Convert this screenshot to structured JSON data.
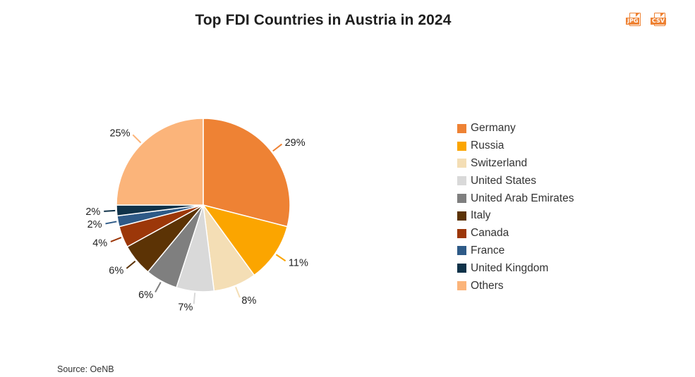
{
  "chart_data": {
    "type": "pie",
    "title": "Top FDI Countries in Austria in 2024",
    "slices": [
      {
        "label": "Germany",
        "value": 29,
        "color": "#ee8234"
      },
      {
        "label": "Russia",
        "value": 11,
        "color": "#fba500"
      },
      {
        "label": "Switzerland",
        "value": 8,
        "color": "#f4deb5"
      },
      {
        "label": "United States",
        "value": 7,
        "color": "#d9d9d9"
      },
      {
        "label": "United Arab Emirates",
        "value": 6,
        "color": "#7f7f7f"
      },
      {
        "label": "Italy",
        "value": 6,
        "color": "#5c3305"
      },
      {
        "label": "Canada",
        "value": 4,
        "color": "#9c3709"
      },
      {
        "label": "France",
        "value": 2,
        "color": "#2e5a87"
      },
      {
        "label": "United Kingdom",
        "value": 2,
        "color": "#0f3249"
      },
      {
        "label": "Others",
        "value": 25,
        "color": "#fbb47a"
      }
    ],
    "value_suffix": "%",
    "legend_position": "right"
  },
  "exports": [
    {
      "label": "JPG",
      "icon": "jpg-file-icon"
    },
    {
      "label": "CSV",
      "icon": "csv-file-icon"
    }
  ],
  "source": "Source: OeNB"
}
